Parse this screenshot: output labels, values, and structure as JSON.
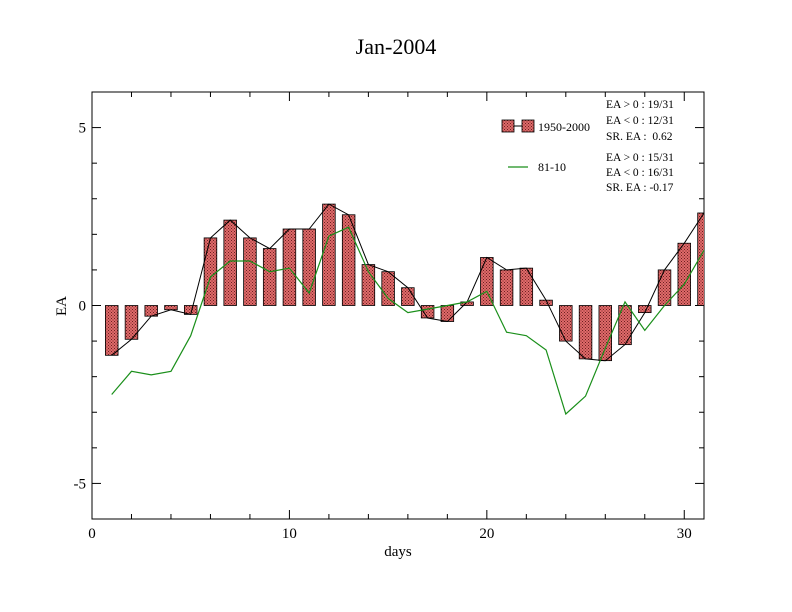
{
  "chart_data": {
    "type": "bar",
    "title": "Jan-2004",
    "xlabel": "days",
    "ylabel": "EA",
    "xlim": [
      0,
      31
    ],
    "ylim": [
      -6,
      6
    ],
    "xticks": [
      0,
      10,
      20,
      30
    ],
    "yticks": [
      -5,
      0,
      5
    ],
    "x": [
      1,
      2,
      3,
      4,
      5,
      6,
      7,
      8,
      9,
      10,
      11,
      12,
      13,
      14,
      15,
      16,
      17,
      18,
      19,
      20,
      21,
      22,
      23,
      24,
      25,
      26,
      27,
      28,
      29,
      30,
      31
    ],
    "series": [
      {
        "name": "1950-2000",
        "kind": "bar+line",
        "color": "#e06666",
        "values": [
          -1.4,
          -0.95,
          -0.3,
          -0.12,
          -0.25,
          1.9,
          2.4,
          1.9,
          1.6,
          2.15,
          2.15,
          2.85,
          2.55,
          1.15,
          0.95,
          0.5,
          -0.35,
          -0.45,
          0.1,
          1.35,
          1.0,
          1.05,
          0.15,
          -1.0,
          -1.5,
          -1.55,
          -1.1,
          -0.2,
          1.0,
          1.75,
          2.6
        ]
      },
      {
        "name": "81-10",
        "kind": "line",
        "color": "#1a8f1a",
        "values": [
          -2.5,
          -1.85,
          -1.95,
          -1.85,
          -0.85,
          0.8,
          1.25,
          1.25,
          0.95,
          1.05,
          0.35,
          1.95,
          2.2,
          0.95,
          0.2,
          -0.2,
          -0.1,
          0.0,
          0.1,
          0.4,
          -0.75,
          -0.85,
          -1.25,
          -3.05,
          -2.55,
          -1.2,
          0.1,
          -0.7,
          0.0,
          0.6,
          1.55
        ]
      }
    ],
    "legend_position": "top-right",
    "stats": [
      [
        "EA > 0 : 19/31",
        "EA < 0 : 12/31",
        "SR. EA :  0.62"
      ],
      [
        "EA > 0 : 15/31",
        "EA < 0 : 16/31",
        "SR. EA : -0.17"
      ]
    ]
  }
}
